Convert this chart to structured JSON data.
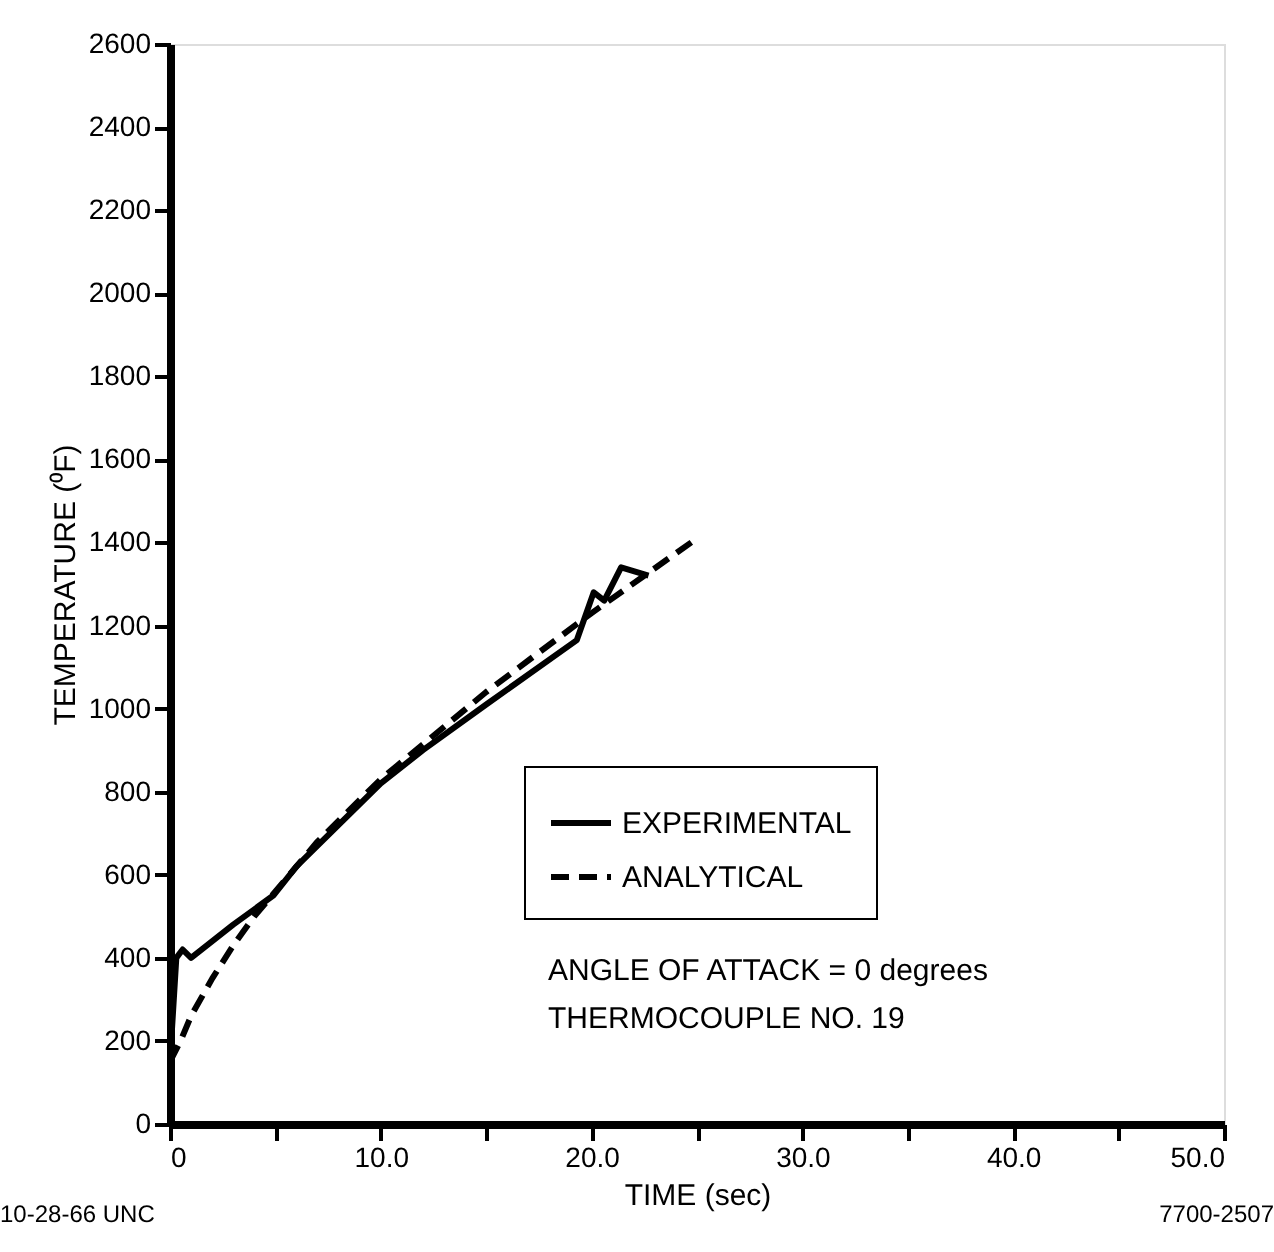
{
  "chart_data": {
    "type": "line",
    "xlabel": "TIME (sec)",
    "ylabel": "TEMPERATURE (⁰F)",
    "xlim": [
      0,
      50
    ],
    "ylim": [
      0,
      2600
    ],
    "xticks": [
      0,
      {
        "value": 5,
        "label": null
      },
      {
        "value": 10,
        "label": "10.0"
      },
      {
        "value": 15,
        "label": null
      },
      {
        "value": 20,
        "label": "20.0"
      },
      {
        "value": 25,
        "label": null
      },
      {
        "value": 30,
        "label": "30.0"
      },
      {
        "value": 35,
        "label": null
      },
      {
        "value": 40,
        "label": "40.0"
      },
      {
        "value": 45,
        "label": null
      },
      {
        "value": 50,
        "label": "50.0"
      }
    ],
    "yticks": [
      0,
      200,
      400,
      600,
      800,
      1000,
      1200,
      1400,
      1600,
      1800,
      2000,
      2200,
      2400,
      2600
    ],
    "grid": false,
    "legend": "bottom right",
    "series": [
      {
        "name": "EXPERIMENTAL",
        "color": "#000000",
        "line_style": "solid",
        "x": [
          0,
          0.3,
          0.6,
          1,
          3,
          4.9,
          6,
          8,
          10,
          12,
          15,
          19.3,
          20.1,
          20.6,
          21.4,
          22.7
        ],
        "values": [
          150,
          400,
          420,
          400,
          480,
          550,
          620,
          720,
          820,
          900,
          1010,
          1165,
          1280,
          1260,
          1340,
          1320
        ]
      },
      {
        "name": "ANALYTICAL",
        "color": "#000000",
        "line_style": "dashed",
        "x": [
          0,
          0.5,
          1,
          2,
          3,
          4,
          5,
          7,
          10,
          15,
          20,
          25
        ],
        "values": [
          150,
          200,
          260,
          350,
          430,
          500,
          560,
          680,
          830,
          1040,
          1230,
          1410
        ]
      }
    ],
    "annotations": [
      "ANGLE OF ATTACK  =  0 degrees",
      "THERMOCOUPLE NO. 19",
      "10-28-66 UNC",
      "7700-2507"
    ]
  }
}
